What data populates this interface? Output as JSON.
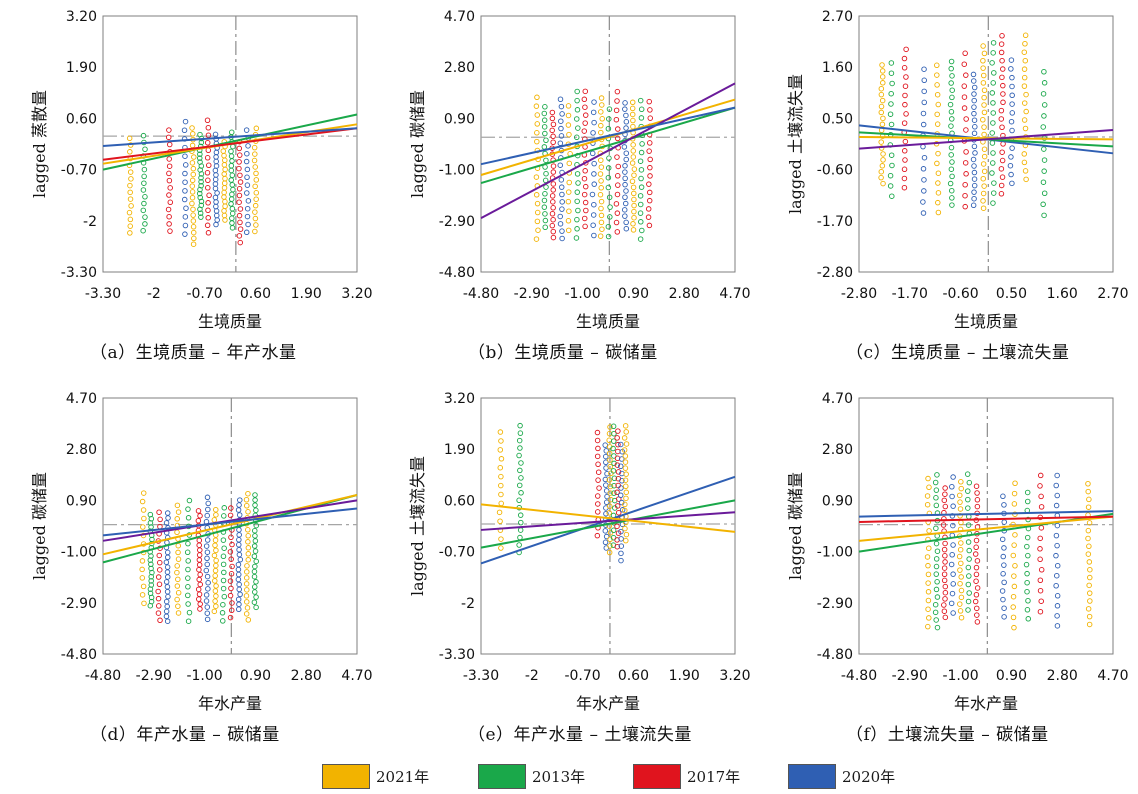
{
  "legend": [
    {
      "label": "2021年",
      "color": "#f2b300"
    },
    {
      "label": "2013年",
      "color": "#1aa84a"
    },
    {
      "label": "2017年",
      "color": "#e0141e"
    },
    {
      "label": "2020年",
      "color": "#2f5fb3"
    }
  ],
  "chart_data": [
    {
      "type": "scatter",
      "caption": "（a）生境质量 – 年产水量",
      "xlabel": "生境质量",
      "ylabel": "lagged 蒸散量",
      "xticks": [
        "-3.30",
        "-2",
        "-0.70",
        "0.60",
        "1.90",
        "3.20"
      ],
      "yticks": [
        "3.20",
        "1.90",
        "0.60",
        "-0.70",
        "-2",
        "-3.30"
      ],
      "xlim": [
        -3.3,
        3.2
      ],
      "ylim": [
        -3.3,
        3.2
      ],
      "xtick_values": [
        -3.3,
        -2,
        -0.7,
        0.6,
        1.9,
        3.2
      ],
      "ytick_values": [
        3.2,
        1.9,
        0.6,
        -0.7,
        -2,
        -3.3
      ],
      "ref_x": 0.1,
      "ref_y": 0.15,
      "columns_x": [
        -2.6,
        -2.25,
        -1.6,
        -1.2,
        -1.0,
        -0.8,
        -0.6,
        -0.4,
        -0.2,
        0.0,
        0.2,
        0.4,
        0.6
      ],
      "point_range": [
        -2.7,
        0.6
      ],
      "fit_lines": [
        {
          "series": "2013年",
          "x": [
            -3.3,
            3.2
          ],
          "y": [
            -0.7,
            0.7
          ]
        },
        {
          "series": "2021年",
          "x": [
            -3.3,
            3.2
          ],
          "y": [
            -0.55,
            0.45
          ]
        },
        {
          "series": "2017年",
          "x": [
            -3.3,
            3.2
          ],
          "y": [
            -0.45,
            0.35
          ]
        },
        {
          "series": "2020年",
          "x": [
            -3.3,
            3.2
          ],
          "y": [
            -0.1,
            0.35
          ]
        }
      ]
    },
    {
      "type": "scatter",
      "caption": "（b）生境质量 – 碳储量",
      "xlabel": "生境质量",
      "ylabel": "lagged 碳储量",
      "xticks": [
        "-4.80",
        "-2.90",
        "-1.00",
        "0.90",
        "2.80",
        "4.70"
      ],
      "yticks": [
        "4.70",
        "2.80",
        "0.90",
        "-1.00",
        "-2.90",
        "-4.80"
      ],
      "xlim": [
        -4.8,
        4.7
      ],
      "ylim": [
        -4.8,
        4.7
      ],
      "xtick_values": [
        -4.8,
        -2.9,
        -1.0,
        0.9,
        2.8,
        4.7
      ],
      "ytick_values": [
        4.7,
        2.8,
        0.9,
        -1.0,
        -2.9,
        -4.8
      ],
      "ref_x": 0.0,
      "ref_y": 0.2,
      "columns_x": [
        -2.7,
        -2.4,
        -2.1,
        -1.8,
        -1.5,
        -1.2,
        -0.9,
        -0.6,
        -0.3,
        0.0,
        0.3,
        0.6,
        0.9,
        1.2,
        1.5
      ],
      "point_range": [
        -3.8,
        2.0
      ],
      "fit_lines": [
        {
          "series": "2013年",
          "x": [
            -4.8,
            4.7
          ],
          "y": [
            -1.5,
            1.3
          ]
        },
        {
          "series": "2021年",
          "x": [
            -4.8,
            4.7
          ],
          "y": [
            -1.2,
            1.6
          ]
        },
        {
          "series": "purple",
          "x": [
            -4.8,
            4.7
          ],
          "y": [
            -2.8,
            2.2
          ]
        },
        {
          "series": "2020年",
          "x": [
            -4.8,
            4.7
          ],
          "y": [
            -0.8,
            1.3
          ]
        }
      ]
    },
    {
      "type": "scatter",
      "caption": "（c）生境质量 – 土壤流失量",
      "xlabel": "生境质量",
      "ylabel": "lagged 土壤流失量",
      "xticks": [
        "-2.80",
        "-1.70",
        "-0.60",
        "0.50",
        "1.60",
        "2.70"
      ],
      "yticks": [
        "2.70",
        "1.60",
        "0.50",
        "-0.60",
        "-1.70",
        "-2.80"
      ],
      "xlim": [
        -2.8,
        2.7
      ],
      "ylim": [
        -2.8,
        2.7
      ],
      "xtick_values": [
        -2.8,
        -1.7,
        -0.6,
        0.5,
        1.6,
        2.7
      ],
      "ytick_values": [
        2.7,
        1.6,
        0.5,
        -0.6,
        -1.7,
        -2.8
      ],
      "ref_x": 0.0,
      "ref_y": 0.1,
      "columns_x": [
        -2.3,
        -2.1,
        -1.8,
        -1.4,
        -1.1,
        -0.8,
        -0.5,
        -0.3,
        -0.1,
        0.1,
        0.3,
        0.5,
        0.8,
        1.2
      ],
      "point_range": [
        -1.6,
        2.3
      ],
      "fit_lines": [
        {
          "series": "2020年",
          "x": [
            -2.8,
            2.7
          ],
          "y": [
            0.35,
            -0.25
          ]
        },
        {
          "series": "2013年",
          "x": [
            -2.8,
            2.7
          ],
          "y": [
            0.2,
            -0.1
          ]
        },
        {
          "series": "2021年",
          "x": [
            -2.8,
            2.7
          ],
          "y": [
            0.1,
            0.05
          ]
        },
        {
          "series": "purple",
          "x": [
            -2.8,
            2.7
          ],
          "y": [
            -0.15,
            0.25
          ]
        }
      ]
    },
    {
      "type": "scatter",
      "caption": "（d）年产水量 – 碳储量",
      "xlabel": "年水产量",
      "ylabel": "lagged 碳储量",
      "xticks": [
        "-4.80",
        "-2.90",
        "-1.00",
        "0.90",
        "2.80",
        "4.70"
      ],
      "yticks": [
        "4.70",
        "2.80",
        "0.90",
        "-1.00",
        "-2.90",
        "-4.80"
      ],
      "xlim": [
        -4.8,
        4.7
      ],
      "ylim": [
        -4.8,
        4.7
      ],
      "xtick_values": [
        -4.8,
        -2.9,
        -1.0,
        0.9,
        2.8,
        4.7
      ],
      "ytick_values": [
        4.7,
        2.8,
        0.9,
        -1.0,
        -2.9,
        -4.8
      ],
      "ref_x": 0.0,
      "ref_y": 0.0,
      "columns_x": [
        -3.3,
        -3.0,
        -2.7,
        -2.4,
        -2.0,
        -1.6,
        -1.2,
        -0.9,
        -0.6,
        -0.3,
        0.0,
        0.3,
        0.6,
        0.9
      ],
      "point_range": [
        -3.6,
        1.2
      ],
      "fit_lines": [
        {
          "series": "2013年",
          "x": [
            -4.8,
            4.7
          ],
          "y": [
            -1.4,
            1.1
          ]
        },
        {
          "series": "2021年",
          "x": [
            -4.8,
            4.7
          ],
          "y": [
            -1.1,
            1.1
          ]
        },
        {
          "series": "purple",
          "x": [
            -4.8,
            4.7
          ],
          "y": [
            -0.6,
            0.9
          ]
        },
        {
          "series": "2020年",
          "x": [
            -4.8,
            4.7
          ],
          "y": [
            -0.4,
            0.6
          ]
        }
      ]
    },
    {
      "type": "scatter",
      "caption": "（e）年产水量 – 土壤流失量",
      "xlabel": "年水产量",
      "ylabel": "lagged 土壤流失量",
      "xticks": [
        "-3.30",
        "-2",
        "-0.70",
        "0.60",
        "1.90",
        "3.20"
      ],
      "yticks": [
        "3.20",
        "1.90",
        "0.60",
        "-0.70",
        "-2",
        "-3.30"
      ],
      "xlim": [
        -3.3,
        3.2
      ],
      "ylim": [
        -3.3,
        3.2
      ],
      "xtick_values": [
        -3.3,
        -2,
        -0.7,
        0.6,
        1.9,
        3.2
      ],
      "ytick_values": [
        3.2,
        1.9,
        0.6,
        -0.7,
        -2,
        -3.3
      ],
      "ref_x": 0.0,
      "ref_y": 0.0,
      "columns_x": [
        -2.8,
        -2.3,
        -0.3,
        -0.1,
        0.0,
        0.1,
        0.2,
        0.3,
        0.4
      ],
      "point_range": [
        -1.0,
        2.6
      ],
      "fit_lines": [
        {
          "series": "2020年",
          "x": [
            -3.3,
            3.2
          ],
          "y": [
            -1.0,
            1.2
          ]
        },
        {
          "series": "2013年",
          "x": [
            -3.3,
            3.2
          ],
          "y": [
            -0.6,
            0.6
          ]
        },
        {
          "series": "purple",
          "x": [
            -3.3,
            3.2
          ],
          "y": [
            -0.15,
            0.3
          ]
        },
        {
          "series": "2021年",
          "x": [
            -3.3,
            3.2
          ],
          "y": [
            0.5,
            -0.2
          ]
        }
      ]
    },
    {
      "type": "scatter",
      "caption": "（f）土壤流失量 – 碳储量",
      "xlabel": "年水产量",
      "ylabel": "lagged 碳储量",
      "xticks": [
        "-4.80",
        "-2.90",
        "-1.00",
        "0.90",
        "2.80",
        "4.70"
      ],
      "yticks": [
        "4.70",
        "2.80",
        "0.90",
        "-1.00",
        "-2.90",
        "-4.80"
      ],
      "xlim": [
        -4.8,
        4.7
      ],
      "ylim": [
        -4.8,
        4.7
      ],
      "xtick_values": [
        -4.8,
        -2.9,
        -1.0,
        0.9,
        2.8,
        4.7
      ],
      "ytick_values": [
        4.7,
        2.8,
        0.9,
        -1.0,
        -2.9,
        -4.8
      ],
      "ref_x": 0.0,
      "ref_y": 0.0,
      "columns_x": [
        -2.2,
        -1.9,
        -1.6,
        -1.3,
        -1.0,
        -0.7,
        -0.4,
        0.6,
        1.0,
        1.5,
        2.0,
        2.6,
        3.8
      ],
      "point_range": [
        -3.9,
        1.9
      ],
      "fit_lines": [
        {
          "series": "2013年",
          "x": [
            -4.8,
            4.7
          ],
          "y": [
            -1.0,
            0.4
          ]
        },
        {
          "series": "2021年",
          "x": [
            -4.8,
            4.7
          ],
          "y": [
            -0.6,
            0.3
          ]
        },
        {
          "series": "2020年",
          "x": [
            -4.8,
            4.7
          ],
          "y": [
            0.3,
            0.5
          ]
        },
        {
          "series": "2017年",
          "x": [
            -4.8,
            4.7
          ],
          "y": [
            0.1,
            0.3
          ]
        }
      ]
    }
  ]
}
